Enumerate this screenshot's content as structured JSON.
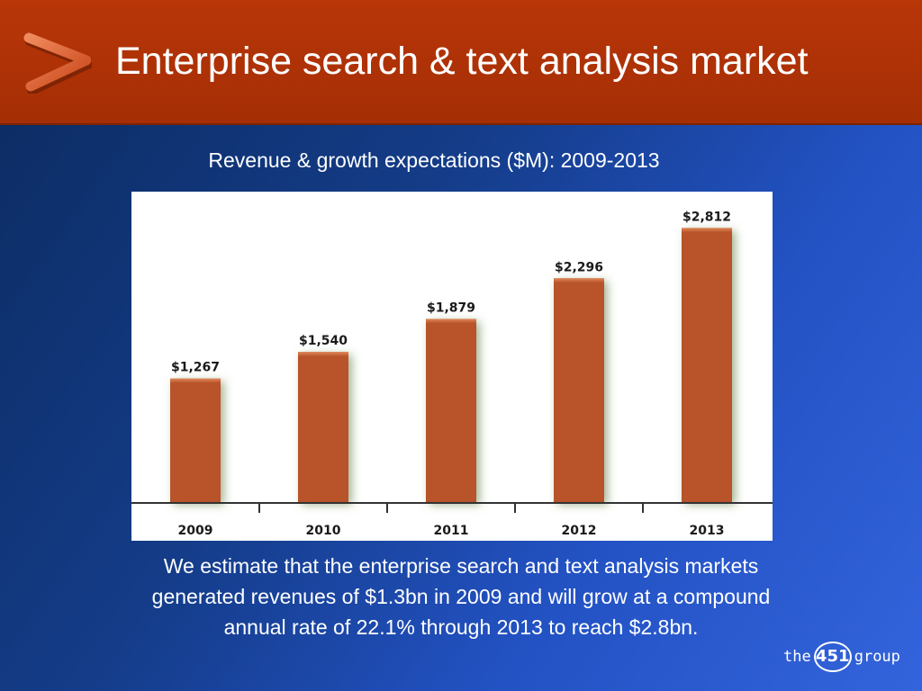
{
  "header": {
    "title": "Enterprise search & text analysis market",
    "accent_color": "#a52e05",
    "arrow_icon": "chevron-right-icon"
  },
  "subtitle": "Revenue & growth expectations ($M): 2009-2013",
  "chart_data": {
    "type": "bar",
    "categories": [
      "2009",
      "2010",
      "2011",
      "2012",
      "2013"
    ],
    "values": [
      1267,
      1540,
      1879,
      2296,
      2812
    ],
    "value_labels": [
      "$1,267",
      "$1,540",
      "$1,879",
      "$2,296",
      "$2,812"
    ],
    "ylim": [
      0,
      3000
    ],
    "grid": false,
    "bar_color": "#b8522a"
  },
  "caption": {
    "lines": [
      "We estimate that the enterprise search and text analysis markets",
      "generated revenues of $1.3bn in 2009 and will grow at a compound",
      "annual rate of 22.1% through 2013 to reach $2.8bn."
    ]
  },
  "logo": {
    "prefix": "the",
    "number": "451",
    "suffix": "group"
  }
}
